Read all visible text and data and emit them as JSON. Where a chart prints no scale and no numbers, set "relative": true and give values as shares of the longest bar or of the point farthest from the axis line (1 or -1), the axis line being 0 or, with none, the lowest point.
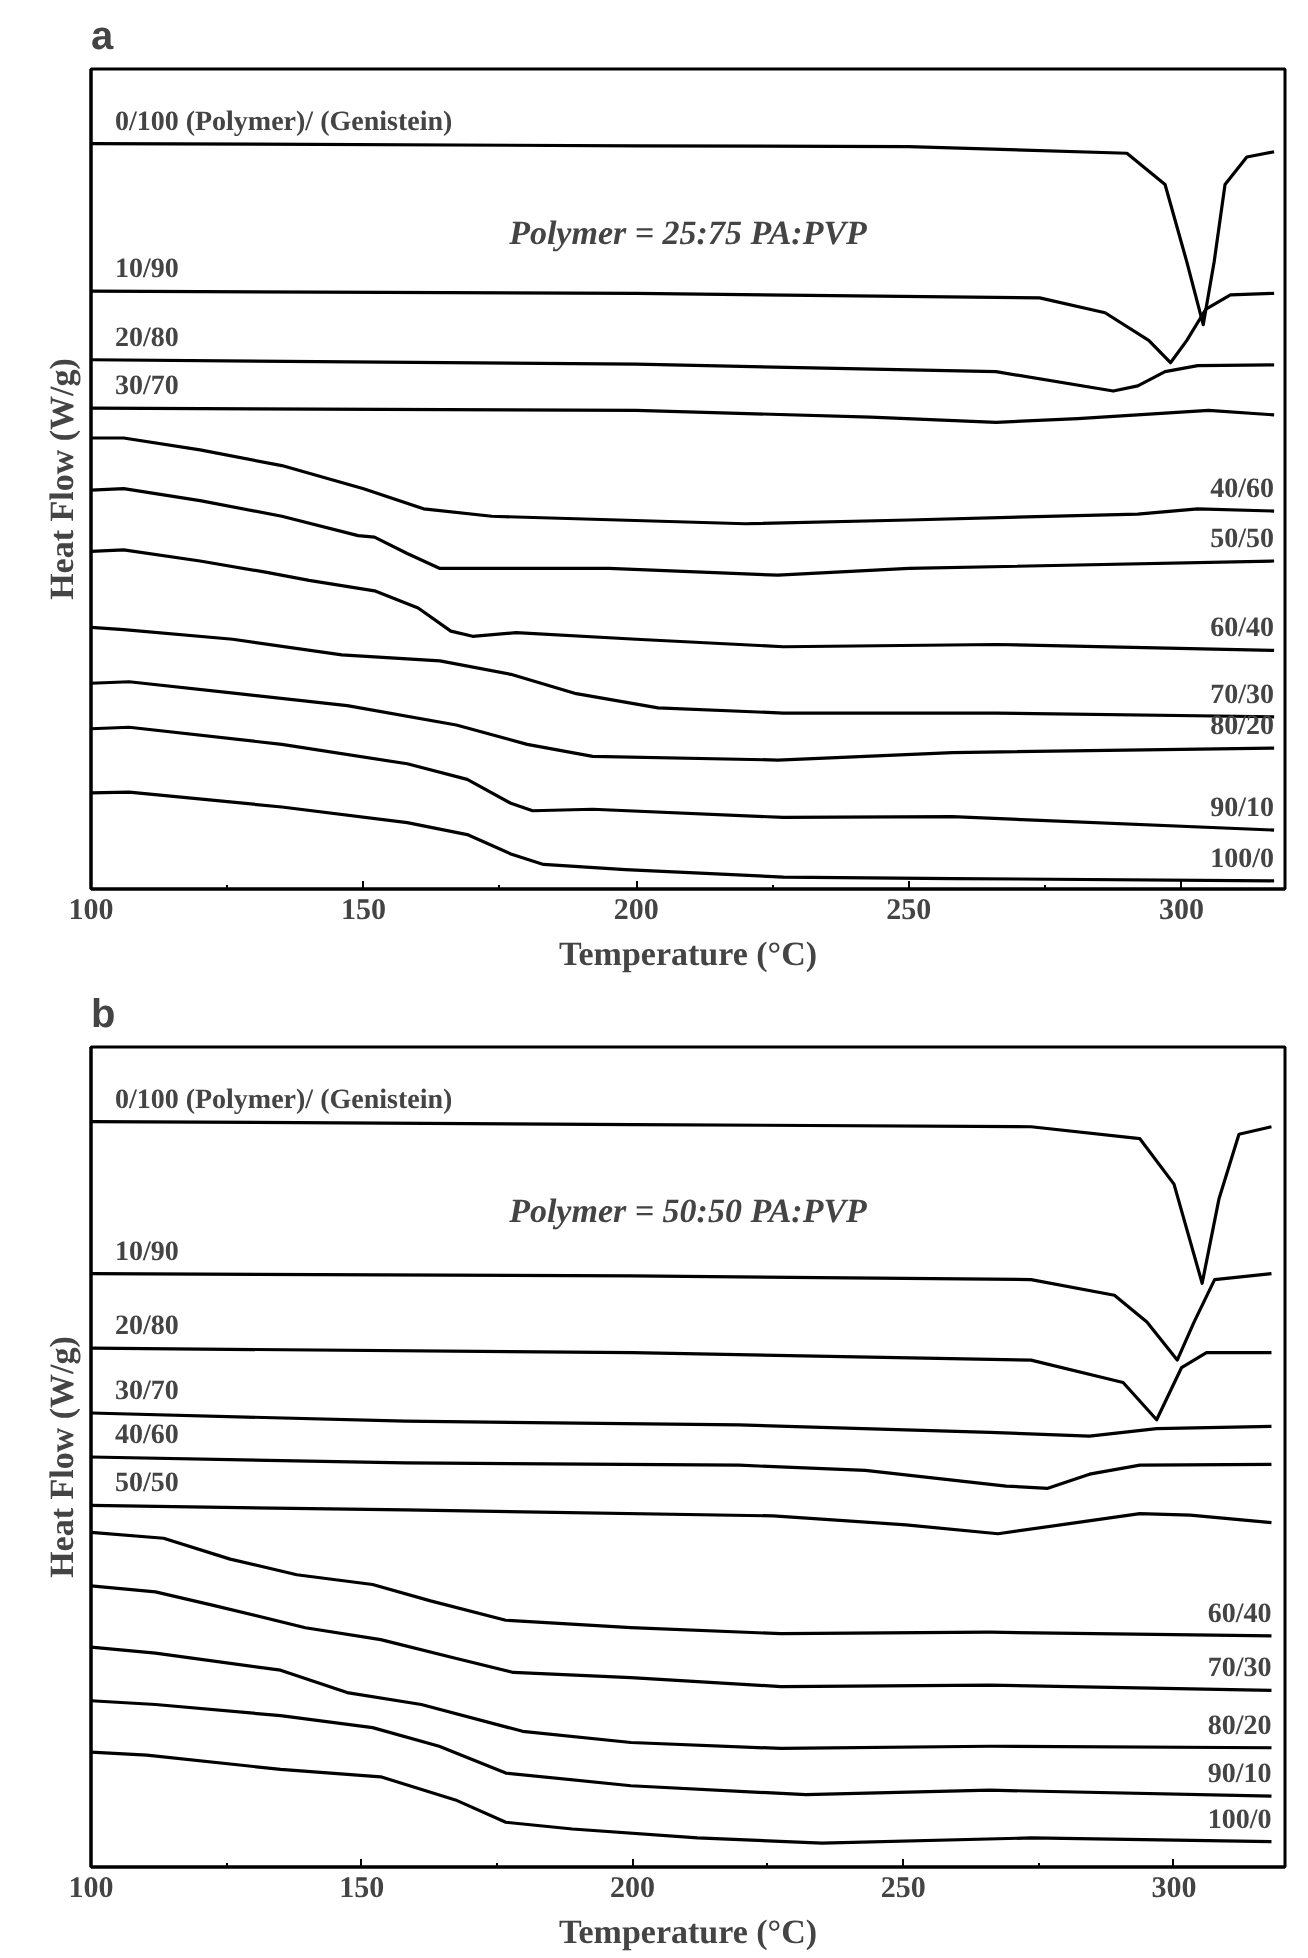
{
  "chart_data": [
    {
      "type": "line",
      "title": "a",
      "xlabel": "Temperature (°C)",
      "ylabel": "Heat Flow (W/g)",
      "relative": true,
      "tick_labels": "x",
      "xlim": [
        100,
        319
      ],
      "xticks": [
        100,
        {
          "value": 125,
          "label": null
        },
        150,
        {
          "value": 175,
          "label": null
        },
        200,
        {
          "value": 225,
          "label": null
        },
        250,
        {
          "value": 275,
          "label": null
        },
        300
      ],
      "annotations": [
        "Polymer = 25:75 PA:PVP"
      ],
      "series": [
        {
          "name": "0/100 (Polymer)/ (Genistein)",
          "color": "#000000",
          "x": [
            100,
            200,
            250,
            290,
            297,
            301,
            304,
            306,
            308,
            312,
            317
          ],
          "values": [
            1.0,
            0.997,
            0.996,
            0.987,
            0.945,
            0.841,
            0.757,
            0.841,
            0.945,
            0.982,
            0.989
          ]
        },
        {
          "name": "10/90",
          "color": "#000000",
          "x": [
            100,
            200,
            274,
            286,
            294,
            298,
            301,
            304.5,
            309,
            317
          ],
          "values": [
            0.802,
            0.799,
            0.793,
            0.773,
            0.736,
            0.706,
            0.736,
            0.778,
            0.797,
            0.799
          ]
        },
        {
          "name": "20/80",
          "color": "#000000",
          "x": [
            100,
            200,
            266,
            287.5,
            292,
            297,
            303,
            317
          ],
          "values": [
            0.71,
            0.704,
            0.694,
            0.668,
            0.675,
            0.694,
            0.702,
            0.703
          ]
        },
        {
          "name": "30/70",
          "color": "#000000",
          "x": [
            100,
            200,
            243,
            266,
            281,
            305,
            317
          ],
          "values": [
            0.645,
            0.642,
            0.633,
            0.626,
            0.631,
            0.642,
            0.636
          ]
        },
        {
          "name": "40/60",
          "color": "#000000",
          "x": [
            100,
            106,
            120,
            135,
            150,
            161,
            173.5,
            220,
            250,
            292,
            303,
            317
          ],
          "values": [
            0.605,
            0.605,
            0.589,
            0.568,
            0.537,
            0.51,
            0.5,
            0.49,
            0.495,
            0.503,
            0.51,
            0.507
          ]
        },
        {
          "name": "50/50",
          "color": "#000000",
          "x": [
            100,
            106,
            120,
            135,
            149,
            152,
            158,
            164,
            195,
            226,
            250,
            317
          ],
          "values": [
            0.535,
            0.537,
            0.521,
            0.5,
            0.474,
            0.472,
            0.45,
            0.43,
            0.43,
            0.421,
            0.43,
            0.44
          ]
        },
        {
          "name": "60/40",
          "color": "#000000",
          "x": [
            100,
            106,
            120,
            132,
            140,
            152,
            160,
            166,
            170,
            178,
            200,
            227,
            266,
            317
          ],
          "values": [
            0.453,
            0.455,
            0.44,
            0.425,
            0.414,
            0.4,
            0.377,
            0.346,
            0.339,
            0.344,
            0.335,
            0.325,
            0.328,
            0.32
          ]
        },
        {
          "name": "70/30",
          "color": "#000000",
          "x": [
            100,
            106,
            126,
            146,
            164,
            177,
            189,
            204,
            227,
            266,
            317
          ],
          "values": [
            0.351,
            0.348,
            0.335,
            0.314,
            0.306,
            0.288,
            0.262,
            0.243,
            0.236,
            0.236,
            0.231
          ]
        },
        {
          "name": "80/20",
          "color": "#000000",
          "x": [
            100,
            107,
            127,
            147,
            167,
            180,
            192,
            226,
            258,
            317
          ],
          "values": [
            0.276,
            0.278,
            0.262,
            0.246,
            0.22,
            0.194,
            0.178,
            0.173,
            0.183,
            0.189
          ]
        },
        {
          "name": "90/10",
          "color": "#000000",
          "x": [
            100,
            107,
            135,
            158,
            169,
            177,
            181,
            192,
            227,
            258,
            317
          ],
          "values": [
            0.215,
            0.217,
            0.194,
            0.168,
            0.147,
            0.115,
            0.105,
            0.107,
            0.096,
            0.097,
            0.079
          ]
        },
        {
          "name": "100/0",
          "color": "#000000",
          "x": [
            100,
            107,
            135,
            158,
            169,
            177,
            183,
            198,
            227,
            258,
            317
          ],
          "values": [
            0.129,
            0.13,
            0.11,
            0.089,
            0.073,
            0.047,
            0.033,
            0.026,
            0.016,
            0.014,
            0.011
          ]
        }
      ]
    },
    {
      "type": "line",
      "title": "b",
      "xlabel": "Temperature (°C)",
      "ylabel": "Heat Flow (W/g)",
      "relative": true,
      "tick_labels": "x",
      "xlim": [
        100,
        320.5
      ],
      "xticks": [
        100,
        {
          "value": 125,
          "label": null
        },
        150,
        {
          "value": 175,
          "label": null
        },
        200,
        {
          "value": 225,
          "label": null
        },
        250,
        {
          "value": 275,
          "label": null
        },
        300
      ],
      "annotations": [
        "Polymer = 50:50 PA:PVP"
      ],
      "series": [
        {
          "name": "0/100 (Polymer)/ (Genistein)",
          "color": "#000000",
          "x": [
            100,
            200,
            273.6,
            293.7,
            300,
            305.2,
            308.3,
            312,
            318
          ],
          "values": [
            1.0,
            0.996,
            0.993,
            0.977,
            0.916,
            0.783,
            0.896,
            0.983,
            0.993
          ]
        },
        {
          "name": "10/90",
          "color": "#000000",
          "x": [
            100,
            200,
            273.6,
            289,
            295,
            300.6,
            303.7,
            307.5,
            318
          ],
          "values": [
            0.796,
            0.793,
            0.788,
            0.767,
            0.731,
            0.68,
            0.731,
            0.788,
            0.796
          ]
        },
        {
          "name": "20/80",
          "color": "#000000",
          "x": [
            100,
            200,
            273.6,
            290.6,
            296.8,
            301.4,
            306,
            318
          ],
          "values": [
            0.696,
            0.69,
            0.68,
            0.65,
            0.6,
            0.67,
            0.69,
            0.69
          ]
        },
        {
          "name": "30/70",
          "color": "#000000",
          "x": [
            100,
            158,
            219.7,
            266,
            284.4,
            296.8,
            318
          ],
          "values": [
            0.609,
            0.598,
            0.593,
            0.583,
            0.578,
            0.588,
            0.591
          ]
        },
        {
          "name": "40/60",
          "color": "#000000",
          "x": [
            100,
            158,
            219.7,
            243,
            269,
            276.7,
            284.4,
            293.7,
            318
          ],
          "values": [
            0.55,
            0.542,
            0.539,
            0.532,
            0.511,
            0.508,
            0.527,
            0.539,
            0.54
          ]
        },
        {
          "name": "50/50",
          "color": "#000000",
          "x": [
            100,
            158,
            226,
            250.5,
            267.5,
            281,
            293.7,
            303,
            318
          ],
          "values": [
            0.485,
            0.479,
            0.471,
            0.459,
            0.447,
            0.461,
            0.474,
            0.472,
            0.462
          ]
        },
        {
          "name": "60/40",
          "color": "#000000",
          "x": [
            100,
            113.4,
            125.7,
            138,
            152,
            162.7,
            176.6,
            199.7,
            227.4,
            266,
            318
          ],
          "values": [
            0.449,
            0.441,
            0.413,
            0.392,
            0.379,
            0.357,
            0.331,
            0.321,
            0.313,
            0.315,
            0.31
          ]
        },
        {
          "name": "70/30",
          "color": "#000000",
          "x": [
            100,
            111.9,
            122.6,
            139.6,
            153.5,
            167.3,
            178,
            199.7,
            227.4,
            266,
            318
          ],
          "values": [
            0.377,
            0.369,
            0.351,
            0.321,
            0.305,
            0.28,
            0.261,
            0.254,
            0.242,
            0.244,
            0.237
          ]
        },
        {
          "name": "80/20",
          "color": "#000000",
          "x": [
            100,
            111.9,
            135,
            147.3,
            161,
            179.7,
            199.7,
            227.4,
            266,
            318
          ],
          "values": [
            0.295,
            0.287,
            0.264,
            0.234,
            0.218,
            0.182,
            0.167,
            0.159,
            0.162,
            0.16
          ]
        },
        {
          "name": "90/10",
          "color": "#000000",
          "x": [
            100,
            111.9,
            135,
            152,
            164.3,
            176.6,
            199.7,
            232,
            266,
            318
          ],
          "values": [
            0.223,
            0.218,
            0.203,
            0.187,
            0.162,
            0.126,
            0.109,
            0.097,
            0.103,
            0.095
          ]
        },
        {
          "name": "100/0",
          "color": "#000000",
          "x": [
            100,
            110.3,
            135,
            153.5,
            167.3,
            176.6,
            188.9,
            212,
            235,
            273.6,
            318
          ],
          "values": [
            0.154,
            0.15,
            0.131,
            0.121,
            0.09,
            0.06,
            0.051,
            0.039,
            0.032,
            0.039,
            0.034
          ]
        }
      ]
    }
  ]
}
